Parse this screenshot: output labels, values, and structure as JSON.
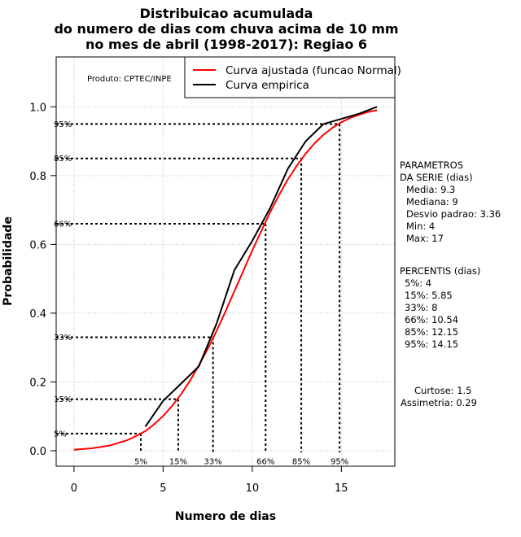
{
  "chart_data": {
    "type": "line",
    "title": [
      "Distribuicao acumulada",
      "do numero de dias com chuva acima de 10 mm",
      "no mes de abril (1998-2017): Regiao 6"
    ],
    "xlabel": "Numero de dias",
    "ylabel": "Probabilidade",
    "xlim": [
      -1,
      18
    ],
    "ylim": [
      -0.045,
      1.145
    ],
    "x_ticks": [
      0,
      5,
      10,
      15
    ],
    "x_tick_labels": [
      "0",
      "5",
      "10",
      "15"
    ],
    "y_ticks": [
      0.0,
      0.2,
      0.4,
      0.6,
      0.8,
      1.0
    ],
    "y_tick_labels": [
      "0.0",
      "0.2",
      "0.4",
      "0.6",
      "0.8",
      "1.0"
    ],
    "grid": true,
    "legend_position": "top-right",
    "series": [
      {
        "name": "Curva ajustada (funcao Normal)",
        "color": "#ff0000",
        "x": [
          0,
          1,
          2,
          3,
          3.5,
          4,
          4.5,
          5,
          5.5,
          6,
          6.5,
          7,
          7.5,
          8,
          8.5,
          9,
          9.5,
          10,
          10.5,
          11,
          11.5,
          12,
          12.5,
          13,
          13.5,
          14,
          14.5,
          15,
          15.5,
          16,
          16.5,
          17
        ],
        "y": [
          0.003,
          0.007,
          0.015,
          0.031,
          0.043,
          0.057,
          0.077,
          0.101,
          0.13,
          0.164,
          0.203,
          0.248,
          0.296,
          0.349,
          0.405,
          0.464,
          0.523,
          0.582,
          0.638,
          0.693,
          0.743,
          0.789,
          0.829,
          0.864,
          0.894,
          0.919,
          0.939,
          0.955,
          0.968,
          0.977,
          0.985,
          0.99
        ]
      },
      {
        "name": "Curva empirica",
        "color": "#000000",
        "x": [
          4,
          5,
          6,
          7,
          8,
          9,
          10,
          11,
          12,
          13,
          14,
          15,
          16,
          17
        ],
        "y": [
          0.07,
          0.145,
          0.195,
          0.245,
          0.37,
          0.525,
          0.61,
          0.705,
          0.82,
          0.9,
          0.95,
          0.965,
          0.98,
          1.0
        ]
      }
    ],
    "percentiles": [
      {
        "label": "5%",
        "p": 0.05,
        "x": 3.75
      },
      {
        "label": "15%",
        "p": 0.15,
        "x": 5.85
      },
      {
        "label": "33%",
        "p": 0.33,
        "x": 7.8
      },
      {
        "label": "66%",
        "p": 0.66,
        "x": 10.75
      },
      {
        "label": "85%",
        "p": 0.85,
        "x": 12.75
      },
      {
        "label": "95%",
        "p": 0.95,
        "x": 14.9
      }
    ],
    "annotation": "Produto: CPTEC/INPE"
  },
  "sidebar": {
    "params_title": [
      "PARAMETROS",
      "DA SERIE (dias)"
    ],
    "params": [
      "Media: 9.3",
      "Mediana: 9",
      "Desvio padrao: 3.36",
      "Min: 4",
      "Max: 17"
    ],
    "perc_title": "PERCENTIS (dias)",
    "perc": [
      "5%: 4",
      "15%: 5.85",
      "33%: 8",
      "66%: 10.54",
      "85%: 12.15",
      "95%: 14.15"
    ],
    "curtose": "Curtose: 1.5",
    "assimetria": "Assimetria: 0.29"
  },
  "colors": {
    "fit": "#ff0000",
    "empirical": "#000000",
    "grid": "#bdbdbd"
  }
}
